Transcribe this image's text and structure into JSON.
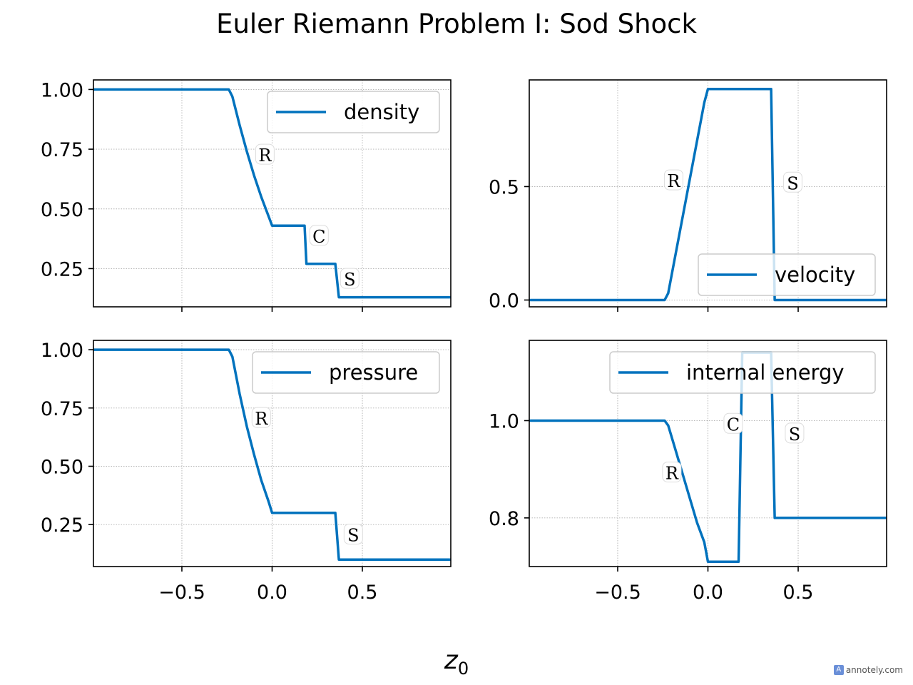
{
  "title": "Euler Riemann Problem I: Sod Shock",
  "xlabel_main": "z",
  "xlabel_sub": "0",
  "watermark": "annotely.com",
  "colors": {
    "line": "#0072bd",
    "grid": "#b0b0b0",
    "axis": "#000000"
  },
  "chart_data": [
    {
      "type": "line",
      "title": "",
      "xlabel": "",
      "ylabel": "",
      "xlim": [
        -0.99,
        0.99
      ],
      "ylim": [
        0.09,
        1.04
      ],
      "xticks": [
        -0.5,
        0.0,
        0.5
      ],
      "xtick_labels_shown": false,
      "yticks": [
        0.25,
        0.5,
        0.75,
        1.0
      ],
      "ytick_labels": [
        "0.25",
        "0.50",
        "0.75",
        "1.00"
      ],
      "grid": true,
      "legend": {
        "position": "upper right",
        "entries": [
          "density"
        ]
      },
      "series": [
        {
          "name": "density",
          "x": [
            -1.0,
            -0.24,
            -0.22,
            -0.18,
            -0.14,
            -0.1,
            -0.06,
            -0.02,
            0.0,
            0.18,
            0.19,
            0.35,
            0.37,
            1.0
          ],
          "y": [
            1.0,
            1.0,
            0.97,
            0.85,
            0.74,
            0.64,
            0.55,
            0.47,
            0.43,
            0.43,
            0.27,
            0.27,
            0.13,
            0.13
          ]
        }
      ],
      "annotations": [
        {
          "text": "R",
          "x": -0.04,
          "y": 0.72
        },
        {
          "text": "C",
          "x": 0.26,
          "y": 0.38
        },
        {
          "text": "S",
          "x": 0.43,
          "y": 0.2
        }
      ]
    },
    {
      "type": "line",
      "title": "",
      "xlabel": "",
      "ylabel": "",
      "xlim": [
        -0.99,
        0.99
      ],
      "ylim": [
        -0.03,
        0.97
      ],
      "xticks": [
        -0.5,
        0.0,
        0.5
      ],
      "xtick_labels_shown": false,
      "yticks": [
        0.0,
        0.5
      ],
      "ytick_labels": [
        "0.0",
        "0.5"
      ],
      "grid": true,
      "legend": {
        "position": "lower right",
        "entries": [
          "velocity"
        ]
      },
      "series": [
        {
          "name": "velocity",
          "x": [
            -1.0,
            -0.24,
            -0.22,
            -0.02,
            0.0,
            0.35,
            0.37,
            1.0
          ],
          "y": [
            0.0,
            0.0,
            0.03,
            0.87,
            0.93,
            0.93,
            0.0,
            0.0
          ]
        }
      ],
      "annotations": [
        {
          "text": "R",
          "x": -0.19,
          "y": 0.52
        },
        {
          "text": "S",
          "x": 0.47,
          "y": 0.51
        }
      ]
    },
    {
      "type": "line",
      "title": "",
      "xlabel": "",
      "ylabel": "",
      "xlim": [
        -0.99,
        0.99
      ],
      "ylim": [
        0.07,
        1.04
      ],
      "xticks": [
        -0.5,
        0.0,
        0.5
      ],
      "xtick_labels": [
        "−0.5",
        "0.0",
        "0.5"
      ],
      "yticks": [
        0.25,
        0.5,
        0.75,
        1.0
      ],
      "ytick_labels": [
        "0.25",
        "0.50",
        "0.75",
        "1.00"
      ],
      "grid": true,
      "legend": {
        "position": "upper right",
        "entries": [
          "pressure"
        ]
      },
      "series": [
        {
          "name": "pressure",
          "x": [
            -1.0,
            -0.24,
            -0.22,
            -0.18,
            -0.14,
            -0.1,
            -0.06,
            -0.02,
            0.0,
            0.35,
            0.37,
            1.0
          ],
          "y": [
            1.0,
            1.0,
            0.97,
            0.81,
            0.67,
            0.55,
            0.44,
            0.35,
            0.3,
            0.3,
            0.1,
            0.1
          ]
        }
      ],
      "annotations": [
        {
          "text": "R",
          "x": -0.06,
          "y": 0.7
        },
        {
          "text": "S",
          "x": 0.45,
          "y": 0.2
        }
      ]
    },
    {
      "type": "line",
      "title": "",
      "xlabel": "",
      "ylabel": "",
      "xlim": [
        -0.99,
        0.99
      ],
      "ylim": [
        0.7,
        1.165
      ],
      "xticks": [
        -0.5,
        0.0,
        0.5
      ],
      "xtick_labels": [
        "−0.5",
        "0.0",
        "0.5"
      ],
      "yticks": [
        0.8,
        1.0
      ],
      "ytick_labels": [
        "0.8",
        "1.0"
      ],
      "grid": true,
      "legend": {
        "position": "upper right",
        "entries": [
          "internal energy"
        ]
      },
      "series": [
        {
          "name": "internal energy",
          "x": [
            -1.0,
            -0.24,
            -0.22,
            -0.18,
            -0.14,
            -0.1,
            -0.06,
            -0.02,
            0.0,
            0.17,
            0.19,
            0.35,
            0.37,
            1.0
          ],
          "y": [
            1.0,
            1.0,
            0.99,
            0.94,
            0.89,
            0.84,
            0.79,
            0.75,
            0.71,
            0.71,
            1.14,
            1.14,
            0.8,
            0.8
          ]
        }
      ],
      "annotations": [
        {
          "text": "C",
          "x": 0.14,
          "y": 0.99
        },
        {
          "text": "S",
          "x": 0.48,
          "y": 0.97
        },
        {
          "text": "R",
          "x": -0.2,
          "y": 0.89
        }
      ]
    }
  ]
}
